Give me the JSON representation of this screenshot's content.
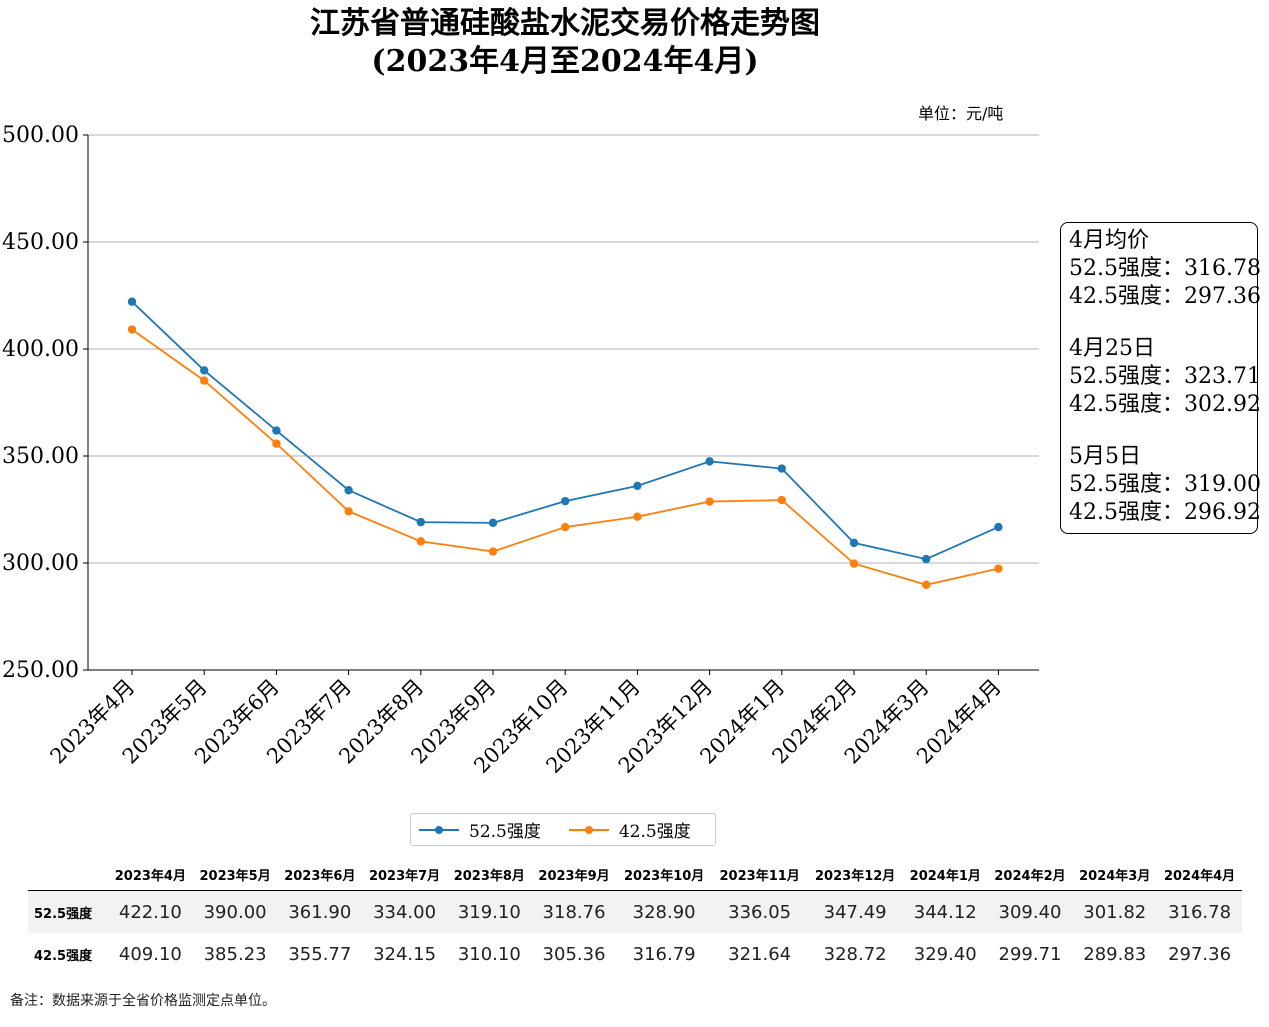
{
  "title_line1": "江苏省普通硅酸盐水泥交易价格走势图",
  "title_line2": "(2023年4月至2024年4月)",
  "unit_label": "单位：元/吨",
  "info_box": [
    {
      "heading": "4月均价",
      "lines": [
        "52.5强度：316.78",
        "42.5强度：297.36"
      ]
    },
    {
      "heading": "4月25日",
      "lines": [
        "52.5强度：323.71",
        "42.5强度：302.92"
      ]
    },
    {
      "heading": "5月5日",
      "lines": [
        "52.5强度：319.00",
        "42.5强度：296.92"
      ]
    }
  ],
  "legend": [
    {
      "label": "52.5强度",
      "color": "#1f77b4"
    },
    {
      "label": "42.5强度",
      "color": "#ff7f0e"
    }
  ],
  "table": {
    "headers": [
      "2023年4月",
      "2023年5月",
      "2023年6月",
      "2023年7月",
      "2023年8月",
      "2023年9月",
      "2023年10月",
      "2023年11月",
      "2023年12月",
      "2024年1月",
      "2024年2月",
      "2024年3月",
      "2024年4月"
    ],
    "rows": [
      {
        "name": "52.5强度",
        "values": [
          "422.10",
          "390.00",
          "361.90",
          "334.00",
          "319.10",
          "318.76",
          "328.90",
          "336.05",
          "347.49",
          "344.12",
          "309.40",
          "301.82",
          "316.78"
        ]
      },
      {
        "name": "42.5强度",
        "values": [
          "409.10",
          "385.23",
          "355.77",
          "324.15",
          "310.10",
          "305.36",
          "316.79",
          "321.64",
          "328.72",
          "329.40",
          "299.71",
          "289.83",
          "297.36"
        ]
      }
    ]
  },
  "note": "备注：数据来源于全省价格监测定点单位。",
  "chart_data": {
    "type": "line",
    "categories": [
      "2023年4月",
      "2023年5月",
      "2023年6月",
      "2023年7月",
      "2023年8月",
      "2023年9月",
      "2023年10月",
      "2023年11月",
      "2023年12月",
      "2024年1月",
      "2024年2月",
      "2024年3月",
      "2024年4月"
    ],
    "series": [
      {
        "name": "52.5强度",
        "color": "#1f77b4",
        "values": [
          422.1,
          390.0,
          361.9,
          334.0,
          319.1,
          318.76,
          328.9,
          336.05,
          347.49,
          344.12,
          309.4,
          301.82,
          316.78
        ]
      },
      {
        "name": "42.5强度",
        "color": "#ff7f0e",
        "values": [
          409.1,
          385.23,
          355.77,
          324.15,
          310.1,
          305.36,
          316.79,
          321.64,
          328.72,
          329.4,
          299.71,
          289.83,
          297.36
        ]
      }
    ],
    "ylim": [
      250,
      500
    ],
    "yticks": [
      "250.00",
      "300.00",
      "350.00",
      "400.00",
      "450.00",
      "500.00"
    ],
    "ytick_values": [
      250,
      300,
      350,
      400,
      450,
      500
    ],
    "grid": "horizontal",
    "legend_position": "bottom-center"
  }
}
